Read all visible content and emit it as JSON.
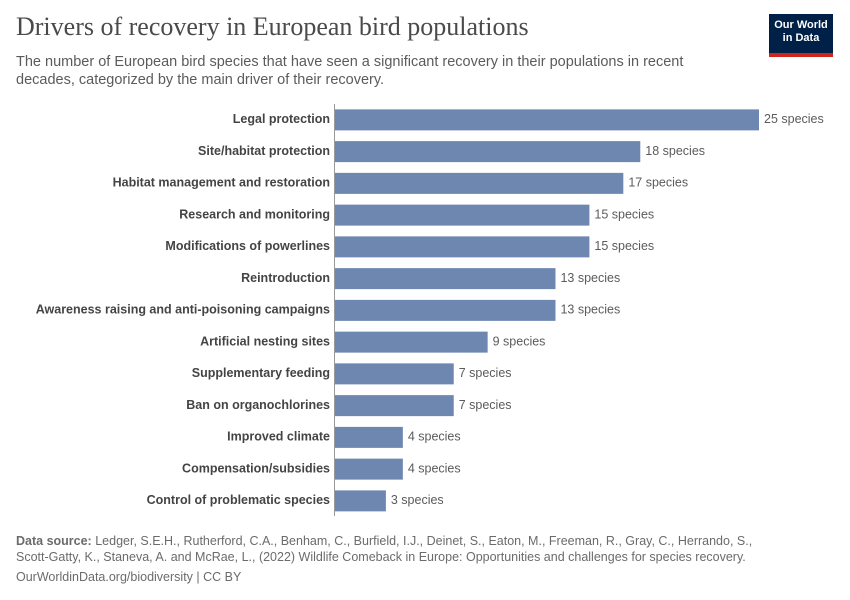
{
  "chart_data": {
    "type": "bar",
    "orientation": "horizontal",
    "title": "Drivers of recovery in European bird populations",
    "subtitle": "The number of European bird species that have seen a significant recovery in their populations in recent decades, categorized by the main driver of their recovery.",
    "categories": [
      "Legal protection",
      "Site/habitat protection",
      "Habitat management and restoration",
      "Research and monitoring",
      "Modifications of powerlines",
      "Reintroduction",
      "Awareness raising and anti-poisoning campaigns",
      "Artificial nesting sites",
      "Supplementary feeding",
      "Ban on organochlorines",
      "Improved climate",
      "Compensation/subsidies",
      "Control of problematic species"
    ],
    "values": [
      25,
      18,
      17,
      15,
      15,
      13,
      13,
      9,
      7,
      7,
      4,
      4,
      3
    ],
    "value_labels": [
      "25 species",
      "18 species",
      "17 species",
      "15 species",
      "15 species",
      "13 species",
      "13 species",
      "9 species",
      "7 species",
      "7 species",
      "4 species",
      "4 species",
      "3 species"
    ],
    "color": "#6d87b1",
    "xlim": [
      0,
      25
    ],
    "source_label": "Data source:",
    "source": "Ledger, S.E.H., Rutherford, C.A., Benham, C., Burfield, I.J., Deinet, S., Eaton, M., Freeman, R., Gray, C., Herrando, S., Scott-Gatty, K., Staneva, A. and McRae, L., (2022) Wildlife Comeback in Europe: Opportunities and challenges for species recovery.",
    "footer": "OurWorldinData.org/biodiversity | CC BY",
    "logo": "Our World in Data"
  }
}
